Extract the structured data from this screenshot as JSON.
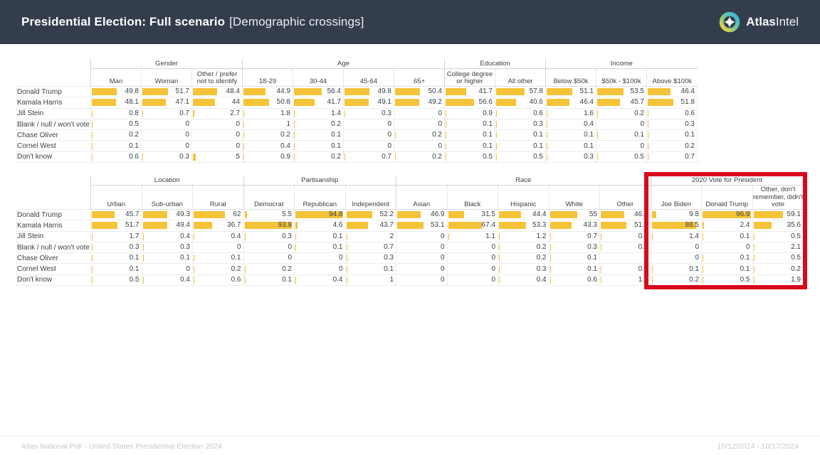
{
  "header": {
    "title_bold": "Presidential Election: Full scenario",
    "title_suffix": "[Demographic crossings]",
    "logo_bold": "Atlas",
    "logo_light": "Intel"
  },
  "footer": {
    "left": "Atlas National Poll - United States Presidential Election 2024",
    "right": "10/12/2024 - 10/17/2024"
  },
  "colors": {
    "header_bg": "#343d4c",
    "bar_yellow": "#f4c338",
    "highlight_red": "#d8091d",
    "footer_text": "#c3c8d0"
  },
  "highlight": {
    "target_group": "2020 Vote for President"
  },
  "chart_data": [
    {
      "type": "table",
      "value_range": [
        0,
        100
      ],
      "groups": [
        {
          "label": "Gender",
          "columns": [
            "Man",
            "Woman",
            "Other / prefer not to identify"
          ]
        },
        {
          "label": "Age",
          "columns": [
            "18-29",
            "30-44",
            "45-64",
            "65+"
          ]
        },
        {
          "label": "Education",
          "columns": [
            "College degree or higher",
            "All other"
          ]
        },
        {
          "label": "Income",
          "columns": [
            "Below $50k",
            "$50k - $100k",
            "Above $100k"
          ]
        }
      ],
      "rows": [
        {
          "label": "Donald Trump",
          "values": [
            "49.8",
            "51.7",
            "48.4",
            "44.9",
            "56.4",
            "49.8",
            "50.4",
            "41.7",
            "57.8",
            "51.1",
            "53.5",
            "46.4"
          ]
        },
        {
          "label": "Kamala Harris",
          "values": [
            "48.1",
            "47.1",
            "44",
            "50.8",
            "41.7",
            "49.1",
            "49.2",
            "56.6",
            "40.6",
            "46.4",
            "45.7",
            "51.8"
          ]
        },
        {
          "label": "Jill Stein",
          "values": [
            "0.8",
            "0.7",
            "2.7",
            "1.8",
            "1.4",
            "0.3",
            "0",
            "0.9",
            "0.6",
            "1.6",
            "0.2",
            "0.6"
          ]
        },
        {
          "label": "Blank / null / won't vote",
          "values": [
            "0.5",
            "0",
            "0",
            "1",
            "0.2",
            "0",
            "0",
            "0.1",
            "0.3",
            "0.4",
            "0",
            "0.3"
          ]
        },
        {
          "label": "Chase Oliver",
          "values": [
            "0.2",
            "0",
            "0",
            "0.2",
            "0.1",
            "0",
            "0.2",
            "0.1",
            "0.1",
            "0.1",
            "0.1",
            "0.1"
          ]
        },
        {
          "label": "Cornel West",
          "values": [
            "0.1",
            "0",
            "0",
            "0.4",
            "0.1",
            "0",
            "0",
            "0.1",
            "0.1",
            "0.1",
            "0",
            "0.2"
          ]
        },
        {
          "label": "Don't know",
          "values": [
            "0.6",
            "0.3",
            "5",
            "0.9",
            "0.2",
            "0.7",
            "0.2",
            "0.5",
            "0.5",
            "0.3",
            "0.5",
            "0.7"
          ]
        }
      ]
    },
    {
      "type": "table",
      "value_range": [
        0,
        100
      ],
      "groups": [
        {
          "label": "Location",
          "columns": [
            "Urban",
            "Sub-urban",
            "Rural"
          ]
        },
        {
          "label": "Partisanship",
          "columns": [
            "Democrat",
            "Republican",
            "Independent"
          ]
        },
        {
          "label": "Race",
          "columns": [
            "Asian",
            "Black",
            "Hispanic",
            "White",
            "Other"
          ]
        },
        {
          "label": "2020 Vote for President",
          "columns": [
            "Joe Biden",
            "Donald Trump",
            "Other, don't remember, didn't vote"
          ]
        }
      ],
      "rows": [
        {
          "label": "Donald Trump",
          "values": [
            "45.7",
            "49.3",
            "62",
            "5.5",
            "94.8",
            "52.2",
            "46.9",
            "31.5",
            "44.4",
            "55",
            "46.2",
            "9.8",
            "96.9",
            "59.1"
          ]
        },
        {
          "label": "Kamala Harris",
          "values": [
            "51.7",
            "49.4",
            "36.7",
            "93.9",
            "4.6",
            "43.7",
            "53.1",
            "67.4",
            "53.3",
            "43.3",
            "51.6",
            "88.5",
            "2.4",
            "35.6"
          ]
        },
        {
          "label": "Jill Stein",
          "values": [
            "1.7",
            "0.4",
            "0.4",
            "0.3",
            "0.1",
            "2",
            "0",
            "1.1",
            "1.2",
            "0.7",
            "0.7",
            "1.4",
            "0.1",
            "0.5"
          ]
        },
        {
          "label": "Blank / null / won't vote",
          "values": [
            "0.3",
            "0.3",
            "0",
            "0",
            "0.1",
            "0.7",
            "0",
            "0",
            "0.2",
            "0.3",
            "0.2",
            "0",
            "0",
            "2.1"
          ]
        },
        {
          "label": "Chase Oliver",
          "values": [
            "0.1",
            "0.1",
            "0.1",
            "0",
            "0",
            "0.3",
            "0",
            "0",
            "0.2",
            "0.1",
            "0",
            "0",
            "0.1",
            "0.5"
          ]
        },
        {
          "label": "Cornel West",
          "values": [
            "0.1",
            "0",
            "0.2",
            "0.2",
            "0",
            "0.1",
            "0",
            "0",
            "0.3",
            "0.1",
            "0.2",
            "0.1",
            "0.1",
            "0.2"
          ]
        },
        {
          "label": "Don't know",
          "values": [
            "0.5",
            "0.4",
            "0.6",
            "0.1",
            "0.4",
            "1",
            "0",
            "0",
            "0.4",
            "0.6",
            "1.2",
            "0.2",
            "0.5",
            "1.9"
          ]
        }
      ]
    }
  ]
}
